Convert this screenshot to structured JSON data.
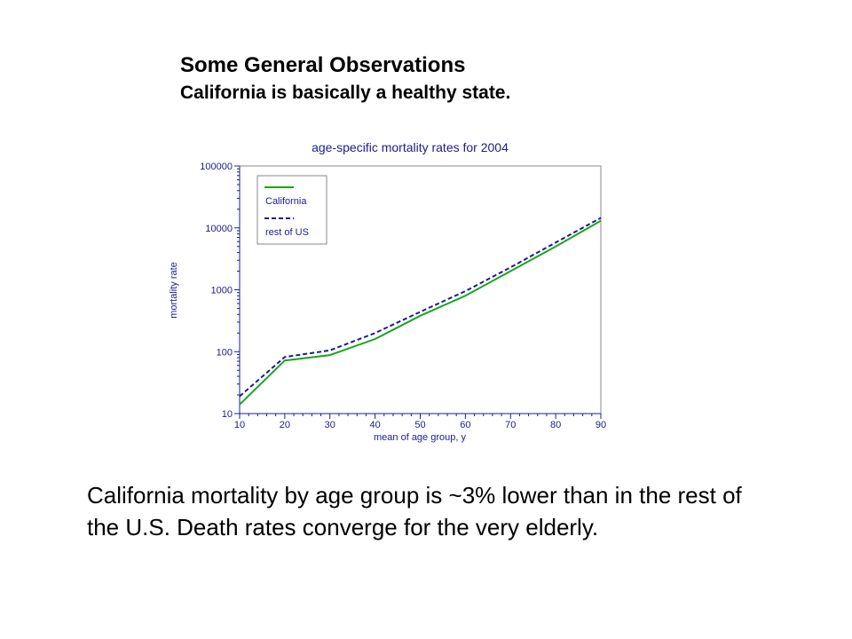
{
  "slide": {
    "title": "Some General Observations",
    "subtitle": "California is basically a healthy state.",
    "body": "California mortality by age group is ~3% lower than in the rest of the U.S. Death rates converge for the very elderly."
  },
  "chart_data": {
    "type": "line",
    "title": "age-specific mortality rates for 2004",
    "xlabel": "mean of age group, y",
    "ylabel": "mortality rate",
    "yscale": "log",
    "xlim": [
      10,
      90
    ],
    "ylim": [
      10,
      100000
    ],
    "x": [
      10,
      20,
      30,
      40,
      50,
      60,
      70,
      80,
      90
    ],
    "xticks": [
      "10",
      "20",
      "30",
      "40",
      "50",
      "60",
      "70",
      "80",
      "90"
    ],
    "yticks": [
      "10",
      "100",
      "1000",
      "10000",
      "100000"
    ],
    "ytick_values": [
      10,
      100,
      1000,
      10000,
      100000
    ],
    "grid": false,
    "legend_position": "top-left",
    "series": [
      {
        "name": "California",
        "color": "#1aa51a",
        "dash": "solid",
        "values": [
          14,
          72,
          88,
          160,
          380,
          800,
          2000,
          5000,
          13000
        ]
      },
      {
        "name": "rest of US",
        "color": "#1c1c8c",
        "dash": "dashed",
        "values": [
          19,
          82,
          105,
          200,
          440,
          950,
          2300,
          5800,
          14500
        ]
      }
    ],
    "colors": {
      "axis": "#1c1c8c",
      "title": "#1c1c8c",
      "frame": "#888888"
    }
  }
}
